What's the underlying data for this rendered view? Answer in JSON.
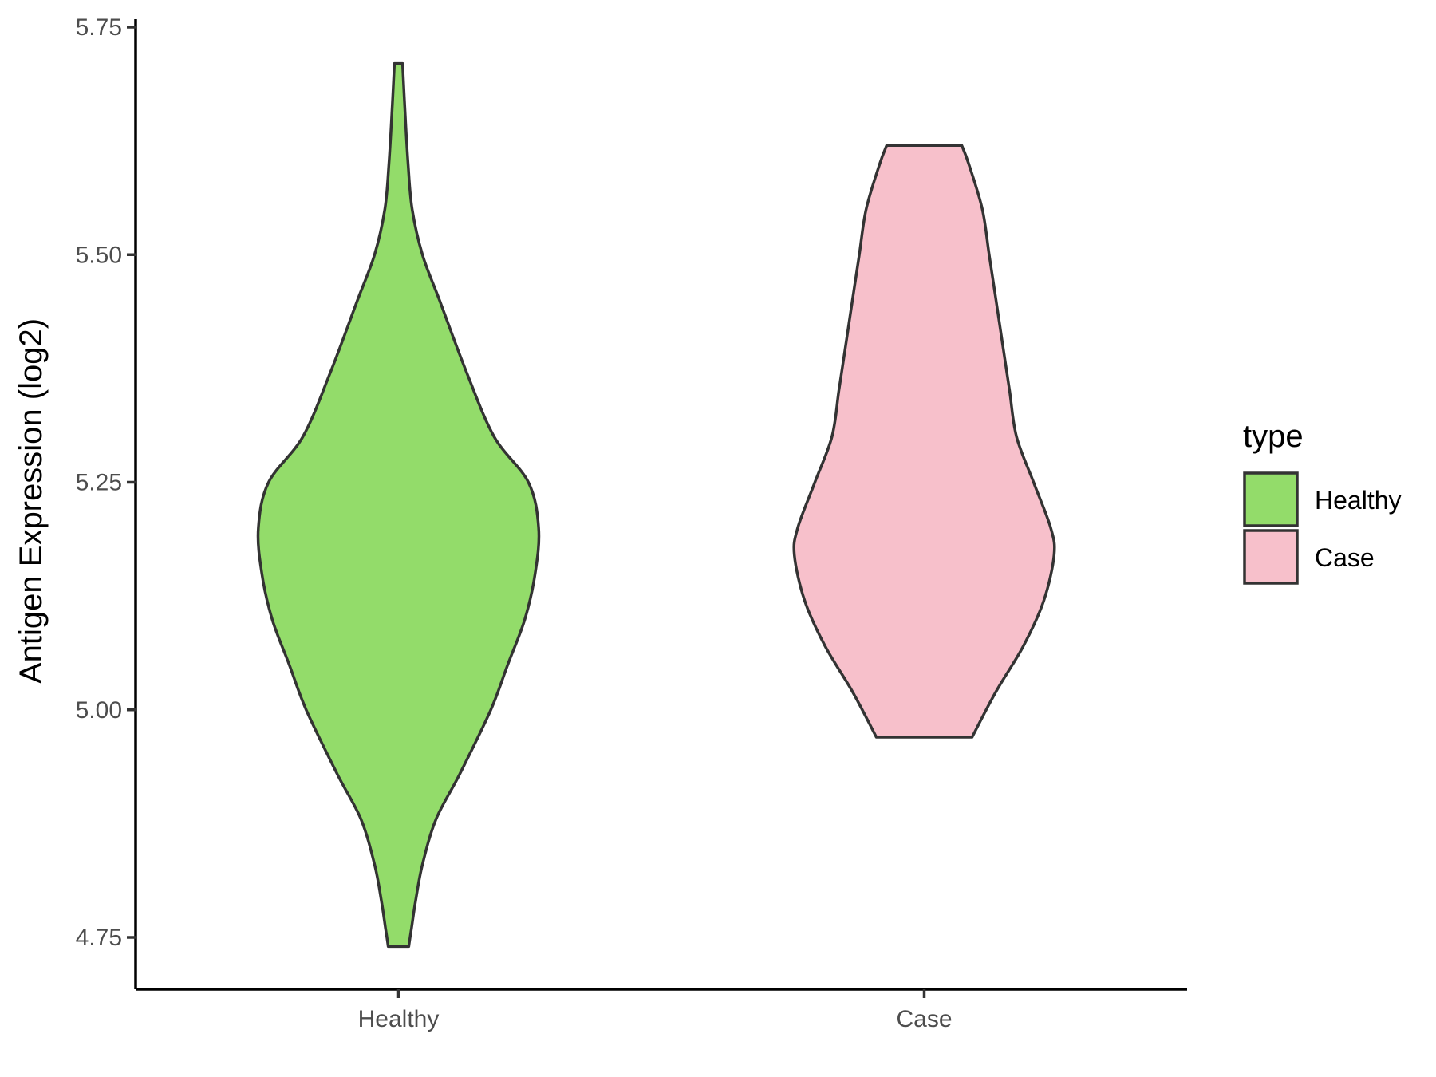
{
  "chart_data": {
    "type": "violin",
    "ylabel": "Antigen Expression (log2)",
    "xlabel": "",
    "ylim": [
      4.69,
      5.76
    ],
    "y_ticks": [
      "4.75",
      "5.00",
      "5.25",
      "5.50",
      "5.75"
    ],
    "y_tick_values": [
      4.75,
      5.0,
      5.25,
      5.5,
      5.75
    ],
    "categories": [
      "Healthy",
      "Case"
    ],
    "grid": false,
    "legend": {
      "title": "type",
      "placement": "right",
      "entries": [
        {
          "label": "Healthy",
          "color": "#93DC6A"
        },
        {
          "label": "Case",
          "color": "#F7C0CB"
        }
      ]
    },
    "series": [
      {
        "category": "Healthy",
        "color": "#93DC6A",
        "min": 4.74,
        "max": 5.71,
        "density_profile": [
          {
            "y": 4.74,
            "half_width": 0.015
          },
          {
            "y": 4.76,
            "half_width": 0.019
          },
          {
            "y": 4.79,
            "half_width": 0.025
          },
          {
            "y": 4.83,
            "half_width": 0.035
          },
          {
            "y": 4.88,
            "half_width": 0.055
          },
          {
            "y": 4.93,
            "half_width": 0.09
          },
          {
            "y": 5.0,
            "half_width": 0.135
          },
          {
            "y": 5.05,
            "half_width": 0.16
          },
          {
            "y": 5.1,
            "half_width": 0.185
          },
          {
            "y": 5.15,
            "half_width": 0.2
          },
          {
            "y": 5.2,
            "half_width": 0.205
          },
          {
            "y": 5.25,
            "half_width": 0.19
          },
          {
            "y": 5.3,
            "half_width": 0.14
          },
          {
            "y": 5.37,
            "half_width": 0.1
          },
          {
            "y": 5.45,
            "half_width": 0.06
          },
          {
            "y": 5.5,
            "half_width": 0.035
          },
          {
            "y": 5.55,
            "half_width": 0.02
          },
          {
            "y": 5.6,
            "half_width": 0.014
          },
          {
            "y": 5.65,
            "half_width": 0.01
          },
          {
            "y": 5.71,
            "half_width": 0.006
          }
        ]
      },
      {
        "category": "Case",
        "color": "#F7C0CB",
        "min": 4.97,
        "max": 5.62,
        "density_profile": [
          {
            "y": 4.97,
            "half_width": 0.07
          },
          {
            "y": 5.02,
            "half_width": 0.105
          },
          {
            "y": 5.07,
            "half_width": 0.145
          },
          {
            "y": 5.12,
            "half_width": 0.175
          },
          {
            "y": 5.17,
            "half_width": 0.19
          },
          {
            "y": 5.2,
            "half_width": 0.185
          },
          {
            "y": 5.25,
            "half_width": 0.16
          },
          {
            "y": 5.3,
            "half_width": 0.135
          },
          {
            "y": 5.35,
            "half_width": 0.125
          },
          {
            "y": 5.4,
            "half_width": 0.115
          },
          {
            "y": 5.45,
            "half_width": 0.105
          },
          {
            "y": 5.5,
            "half_width": 0.095
          },
          {
            "y": 5.55,
            "half_width": 0.085
          },
          {
            "y": 5.6,
            "half_width": 0.065
          },
          {
            "y": 5.62,
            "half_width": 0.055
          }
        ]
      }
    ]
  }
}
